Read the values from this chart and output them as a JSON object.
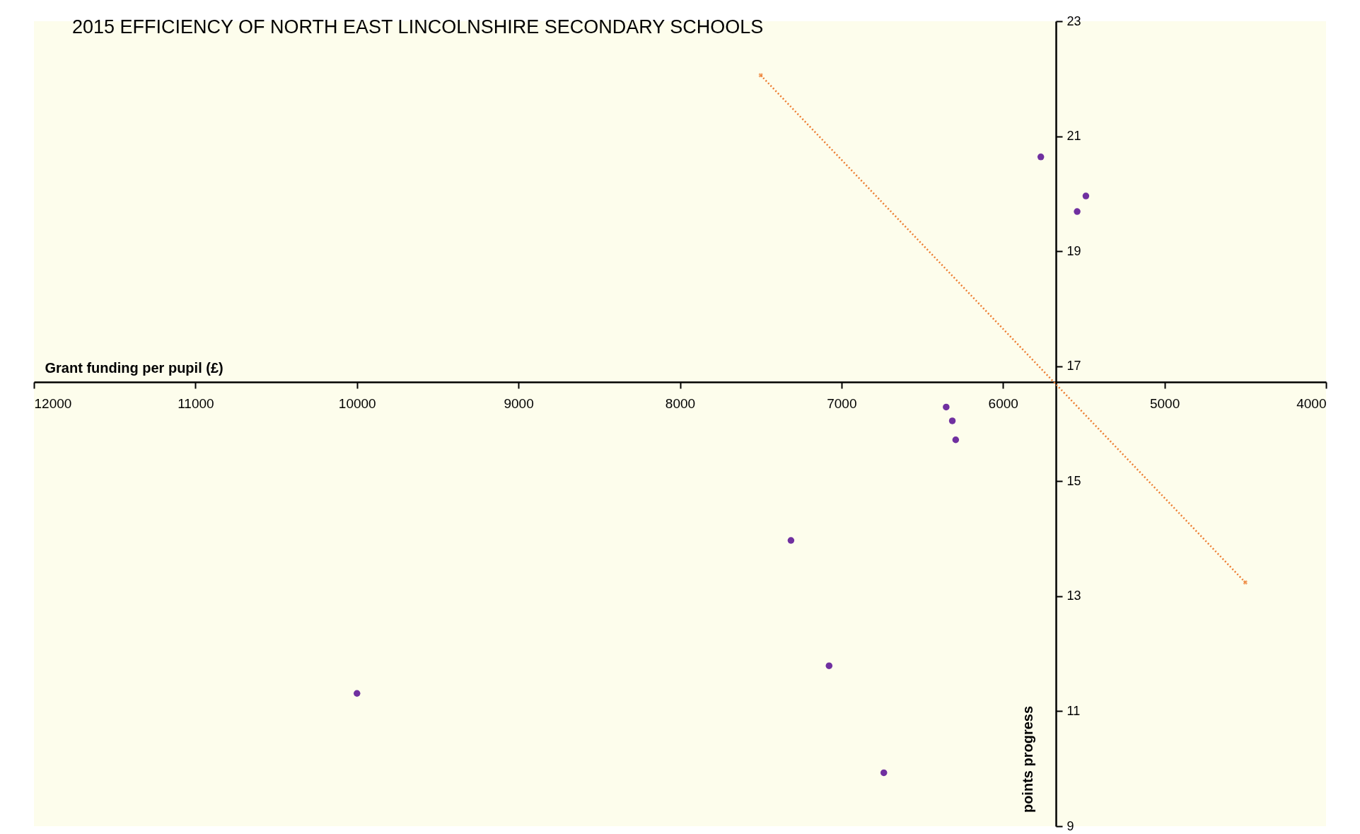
{
  "chart_data": {
    "type": "scatter",
    "title": "2015  EFFICIENCY OF NORTH EAST LINCOLNSHIRE SECONDARY SCHOOLS",
    "xlabel": "Grant funding per pupil (£)",
    "ylabel": "points progress",
    "xlim": [
      12000,
      4000
    ],
    "xticks": [
      12000,
      11000,
      10000,
      9000,
      8000,
      7000,
      6000,
      5000,
      4000
    ],
    "ylim": [
      9,
      23
    ],
    "yticks": [
      9,
      11,
      13,
      15,
      17,
      19,
      21,
      23
    ],
    "grid": false,
    "series": [
      {
        "color": "#7030a0",
        "marker": "circle",
        "x": [
          5766,
          5487,
          5541,
          6352,
          6314,
          6293,
          7313,
          7077,
          10000,
          6738
        ],
        "values": [
          20.64,
          19.96,
          19.69,
          16.29,
          16.05,
          15.72,
          13.97,
          11.79,
          11.31,
          9.93
        ]
      },
      {
        "type": "line",
        "color": "#ed7d31",
        "marker": "cross",
        "line_style": "dotted",
        "x": [
          7500,
          4500
        ],
        "values": [
          22.06,
          13.24
        ]
      }
    ]
  }
}
